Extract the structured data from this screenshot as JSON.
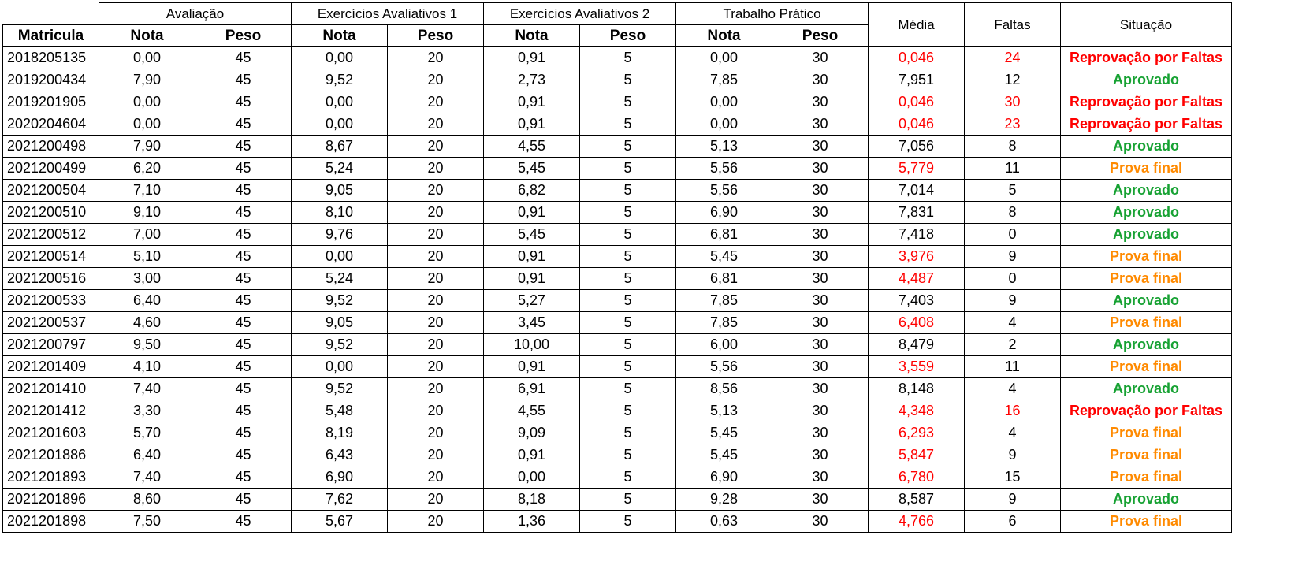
{
  "headers": {
    "matricula": "Matricula",
    "groups": [
      "Avaliação",
      "Exercícios Avaliativos 1",
      "Exercícios Avaliativos 2",
      "Trabalho Prático"
    ],
    "nota": "Nota",
    "peso": "Peso",
    "media": "Média",
    "faltas": "Faltas",
    "situacao": "Situação"
  },
  "colors": {
    "red": "#ff0000",
    "green": "#17a233",
    "orange": "#ff8a00"
  },
  "rows": [
    {
      "matricula": "2018205135",
      "av_nota": "0,00",
      "av_peso": "45",
      "ea1_nota": "0,00",
      "ea1_peso": "20",
      "ea2_nota": "0,91",
      "ea2_peso": "5",
      "tp_nota": "0,00",
      "tp_peso": "30",
      "media": "0,046",
      "faltas": "24",
      "situacao": "Reprovação por Faltas",
      "media_status": "red",
      "faltas_status": "red",
      "situacao_status": "red"
    },
    {
      "matricula": "2019200434",
      "av_nota": "7,90",
      "av_peso": "45",
      "ea1_nota": "9,52",
      "ea1_peso": "20",
      "ea2_nota": "2,73",
      "ea2_peso": "5",
      "tp_nota": "7,85",
      "tp_peso": "30",
      "media": "7,951",
      "faltas": "12",
      "situacao": "Aprovado",
      "media_status": "normal",
      "faltas_status": "normal",
      "situacao_status": "green"
    },
    {
      "matricula": "2019201905",
      "av_nota": "0,00",
      "av_peso": "45",
      "ea1_nota": "0,00",
      "ea1_peso": "20",
      "ea2_nota": "0,91",
      "ea2_peso": "5",
      "tp_nota": "0,00",
      "tp_peso": "30",
      "media": "0,046",
      "faltas": "30",
      "situacao": "Reprovação por Faltas",
      "media_status": "red",
      "faltas_status": "red",
      "situacao_status": "red"
    },
    {
      "matricula": "2020204604",
      "av_nota": "0,00",
      "av_peso": "45",
      "ea1_nota": "0,00",
      "ea1_peso": "20",
      "ea2_nota": "0,91",
      "ea2_peso": "5",
      "tp_nota": "0,00",
      "tp_peso": "30",
      "media": "0,046",
      "faltas": "23",
      "situacao": "Reprovação por Faltas",
      "media_status": "red",
      "faltas_status": "red",
      "situacao_status": "red"
    },
    {
      "matricula": "2021200498",
      "av_nota": "7,90",
      "av_peso": "45",
      "ea1_nota": "8,67",
      "ea1_peso": "20",
      "ea2_nota": "4,55",
      "ea2_peso": "5",
      "tp_nota": "5,13",
      "tp_peso": "30",
      "media": "7,056",
      "faltas": "8",
      "situacao": "Aprovado",
      "media_status": "normal",
      "faltas_status": "normal",
      "situacao_status": "green"
    },
    {
      "matricula": "2021200499",
      "av_nota": "6,20",
      "av_peso": "45",
      "ea1_nota": "5,24",
      "ea1_peso": "20",
      "ea2_nota": "5,45",
      "ea2_peso": "5",
      "tp_nota": "5,56",
      "tp_peso": "30",
      "media": "5,779",
      "faltas": "11",
      "situacao": "Prova final",
      "media_status": "red",
      "faltas_status": "normal",
      "situacao_status": "orange"
    },
    {
      "matricula": "2021200504",
      "av_nota": "7,10",
      "av_peso": "45",
      "ea1_nota": "9,05",
      "ea1_peso": "20",
      "ea2_nota": "6,82",
      "ea2_peso": "5",
      "tp_nota": "5,56",
      "tp_peso": "30",
      "media": "7,014",
      "faltas": "5",
      "situacao": "Aprovado",
      "media_status": "normal",
      "faltas_status": "normal",
      "situacao_status": "green"
    },
    {
      "matricula": "2021200510",
      "av_nota": "9,10",
      "av_peso": "45",
      "ea1_nota": "8,10",
      "ea1_peso": "20",
      "ea2_nota": "0,91",
      "ea2_peso": "5",
      "tp_nota": "6,90",
      "tp_peso": "30",
      "media": "7,831",
      "faltas": "8",
      "situacao": "Aprovado",
      "media_status": "normal",
      "faltas_status": "normal",
      "situacao_status": "green"
    },
    {
      "matricula": "2021200512",
      "av_nota": "7,00",
      "av_peso": "45",
      "ea1_nota": "9,76",
      "ea1_peso": "20",
      "ea2_nota": "5,45",
      "ea2_peso": "5",
      "tp_nota": "6,81",
      "tp_peso": "30",
      "media": "7,418",
      "faltas": "0",
      "situacao": "Aprovado",
      "media_status": "normal",
      "faltas_status": "normal",
      "situacao_status": "green"
    },
    {
      "matricula": "2021200514",
      "av_nota": "5,10",
      "av_peso": "45",
      "ea1_nota": "0,00",
      "ea1_peso": "20",
      "ea2_nota": "0,91",
      "ea2_peso": "5",
      "tp_nota": "5,45",
      "tp_peso": "30",
      "media": "3,976",
      "faltas": "9",
      "situacao": "Prova final",
      "media_status": "red",
      "faltas_status": "normal",
      "situacao_status": "orange"
    },
    {
      "matricula": "2021200516",
      "av_nota": "3,00",
      "av_peso": "45",
      "ea1_nota": "5,24",
      "ea1_peso": "20",
      "ea2_nota": "0,91",
      "ea2_peso": "5",
      "tp_nota": "6,81",
      "tp_peso": "30",
      "media": "4,487",
      "faltas": "0",
      "situacao": "Prova final",
      "media_status": "red",
      "faltas_status": "normal",
      "situacao_status": "orange"
    },
    {
      "matricula": "2021200533",
      "av_nota": "6,40",
      "av_peso": "45",
      "ea1_nota": "9,52",
      "ea1_peso": "20",
      "ea2_nota": "5,27",
      "ea2_peso": "5",
      "tp_nota": "7,85",
      "tp_peso": "30",
      "media": "7,403",
      "faltas": "9",
      "situacao": "Aprovado",
      "media_status": "normal",
      "faltas_status": "normal",
      "situacao_status": "green"
    },
    {
      "matricula": "2021200537",
      "av_nota": "4,60",
      "av_peso": "45",
      "ea1_nota": "9,05",
      "ea1_peso": "20",
      "ea2_nota": "3,45",
      "ea2_peso": "5",
      "tp_nota": "7,85",
      "tp_peso": "30",
      "media": "6,408",
      "faltas": "4",
      "situacao": "Prova final",
      "media_status": "red",
      "faltas_status": "normal",
      "situacao_status": "orange"
    },
    {
      "matricula": "2021200797",
      "av_nota": "9,50",
      "av_peso": "45",
      "ea1_nota": "9,52",
      "ea1_peso": "20",
      "ea2_nota": "10,00",
      "ea2_peso": "5",
      "tp_nota": "6,00",
      "tp_peso": "30",
      "media": "8,479",
      "faltas": "2",
      "situacao": "Aprovado",
      "media_status": "normal",
      "faltas_status": "normal",
      "situacao_status": "green"
    },
    {
      "matricula": "2021201409",
      "av_nota": "4,10",
      "av_peso": "45",
      "ea1_nota": "0,00",
      "ea1_peso": "20",
      "ea2_nota": "0,91",
      "ea2_peso": "5",
      "tp_nota": "5,56",
      "tp_peso": "30",
      "media": "3,559",
      "faltas": "11",
      "situacao": "Prova final",
      "media_status": "red",
      "faltas_status": "normal",
      "situacao_status": "orange"
    },
    {
      "matricula": "2021201410",
      "av_nota": "7,40",
      "av_peso": "45",
      "ea1_nota": "9,52",
      "ea1_peso": "20",
      "ea2_nota": "6,91",
      "ea2_peso": "5",
      "tp_nota": "8,56",
      "tp_peso": "30",
      "media": "8,148",
      "faltas": "4",
      "situacao": "Aprovado",
      "media_status": "normal",
      "faltas_status": "normal",
      "situacao_status": "green"
    },
    {
      "matricula": "2021201412",
      "av_nota": "3,30",
      "av_peso": "45",
      "ea1_nota": "5,48",
      "ea1_peso": "20",
      "ea2_nota": "4,55",
      "ea2_peso": "5",
      "tp_nota": "5,13",
      "tp_peso": "30",
      "media": "4,348",
      "faltas": "16",
      "situacao": "Reprovação por Faltas",
      "media_status": "red",
      "faltas_status": "red",
      "situacao_status": "red"
    },
    {
      "matricula": "2021201603",
      "av_nota": "5,70",
      "av_peso": "45",
      "ea1_nota": "8,19",
      "ea1_peso": "20",
      "ea2_nota": "9,09",
      "ea2_peso": "5",
      "tp_nota": "5,45",
      "tp_peso": "30",
      "media": "6,293",
      "faltas": "4",
      "situacao": "Prova final",
      "media_status": "red",
      "faltas_status": "normal",
      "situacao_status": "orange"
    },
    {
      "matricula": "2021201886",
      "av_nota": "6,40",
      "av_peso": "45",
      "ea1_nota": "6,43",
      "ea1_peso": "20",
      "ea2_nota": "0,91",
      "ea2_peso": "5",
      "tp_nota": "5,45",
      "tp_peso": "30",
      "media": "5,847",
      "faltas": "9",
      "situacao": "Prova final",
      "media_status": "red",
      "faltas_status": "normal",
      "situacao_status": "orange"
    },
    {
      "matricula": "2021201893",
      "av_nota": "7,40",
      "av_peso": "45",
      "ea1_nota": "6,90",
      "ea1_peso": "20",
      "ea2_nota": "0,00",
      "ea2_peso": "5",
      "tp_nota": "6,90",
      "tp_peso": "30",
      "media": "6,780",
      "faltas": "15",
      "situacao": "Prova final",
      "media_status": "red",
      "faltas_status": "normal",
      "situacao_status": "orange"
    },
    {
      "matricula": "2021201896",
      "av_nota": "8,60",
      "av_peso": "45",
      "ea1_nota": "7,62",
      "ea1_peso": "20",
      "ea2_nota": "8,18",
      "ea2_peso": "5",
      "tp_nota": "9,28",
      "tp_peso": "30",
      "media": "8,587",
      "faltas": "9",
      "situacao": "Aprovado",
      "media_status": "normal",
      "faltas_status": "normal",
      "situacao_status": "green"
    },
    {
      "matricula": "2021201898",
      "av_nota": "7,50",
      "av_peso": "45",
      "ea1_nota": "5,67",
      "ea1_peso": "20",
      "ea2_nota": "1,36",
      "ea2_peso": "5",
      "tp_nota": "0,63",
      "tp_peso": "30",
      "media": "4,766",
      "faltas": "6",
      "situacao": "Prova final",
      "media_status": "red",
      "faltas_status": "normal",
      "situacao_status": "orange"
    }
  ]
}
